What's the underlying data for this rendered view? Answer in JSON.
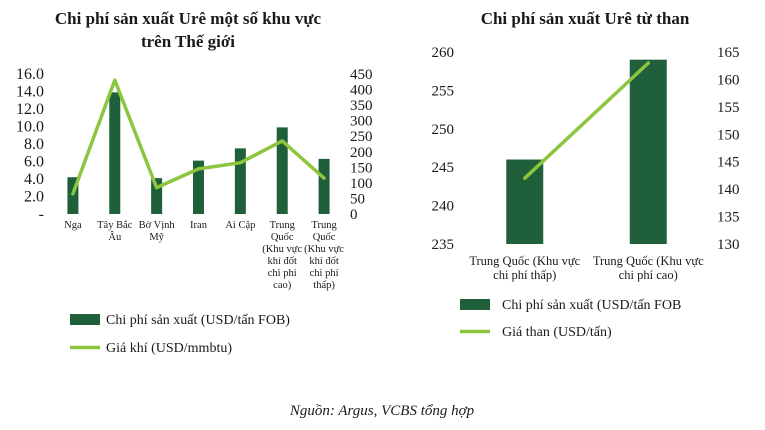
{
  "colors": {
    "bar": "#1f5f3a",
    "line": "#8cc63f"
  },
  "chart_data": [
    {
      "type": "bar+line",
      "title_lines": [
        "Chi phí sản xuất Urê một số khu vực",
        "trên Thế giới"
      ],
      "categories": [
        [
          "Nga"
        ],
        [
          "Tây Bắc",
          "Âu"
        ],
        [
          "Bờ Vịnh",
          "Mỹ"
        ],
        [
          "Iran"
        ],
        [
          "Ai Cập"
        ],
        [
          "Trung",
          "Quốc",
          "(Khu vực",
          "khí đốt",
          "chi phí",
          "cao)"
        ],
        [
          "Trung",
          "Quốc",
          "(Khu vực",
          "khí đốt",
          "chi phí",
          "thấp)"
        ]
      ],
      "bar_series": {
        "name": "Chi phí sản xuất (USD/tấn FOB)",
        "values": [
          4.2,
          13.9,
          4.1,
          6.1,
          7.5,
          9.9,
          6.3
        ]
      },
      "line_series": {
        "name": "Giá khí (USD/mmbtu)",
        "values": [
          65,
          430,
          85,
          145,
          165,
          235,
          115
        ]
      },
      "y_left": {
        "range": [
          0,
          16
        ],
        "ticks": [
          "-",
          "2.0",
          "4.0",
          "6.0",
          "8.0",
          "10.0",
          "12.0",
          "14.0",
          "16.0"
        ],
        "tick_values": [
          0,
          2,
          4,
          6,
          8,
          10,
          12,
          14,
          16
        ]
      },
      "y_right": {
        "range": [
          0,
          450
        ],
        "ticks": [
          "0",
          "50",
          "100",
          "150",
          "200",
          "250",
          "300",
          "350",
          "400",
          "450"
        ],
        "tick_values": [
          0,
          50,
          100,
          150,
          200,
          250,
          300,
          350,
          400,
          450
        ]
      },
      "legend": [
        {
          "kind": "bar",
          "label": "Chi phí sản xuất (USD/tấn FOB)"
        },
        {
          "kind": "line",
          "label": "Giá khí (USD/mmbtu)"
        }
      ]
    },
    {
      "type": "bar+line",
      "title_lines": [
        "Chi phí sản xuất Urê từ than"
      ],
      "categories": [
        [
          "Trung Quốc (Khu vực",
          "chi phí thấp)"
        ],
        [
          "Trung Quốc (Khu vực",
          "chi phí cao)"
        ]
      ],
      "bar_series": {
        "name": "Chi phí sản xuất (USD/tấn FOB",
        "values": [
          246,
          259
        ]
      },
      "line_series": {
        "name": "Giá than (USD/tấn)",
        "values": [
          142,
          163
        ]
      },
      "y_left": {
        "range": [
          235,
          260
        ],
        "ticks": [
          "235",
          "240",
          "245",
          "250",
          "255",
          "260"
        ],
        "tick_values": [
          235,
          240,
          245,
          250,
          255,
          260
        ]
      },
      "y_right": {
        "range": [
          130,
          165
        ],
        "ticks": [
          "130",
          "135",
          "140",
          "145",
          "150",
          "155",
          "160",
          "165"
        ],
        "tick_values": [
          130,
          135,
          140,
          145,
          150,
          155,
          160,
          165
        ]
      },
      "legend": [
        {
          "kind": "bar",
          "label": "Chi phí sản xuất (USD/tấn FOB"
        },
        {
          "kind": "line",
          "label": "Giá than (USD/tấn)"
        }
      ]
    }
  ],
  "source": "Nguồn: Argus, VCBS tổng hợp"
}
